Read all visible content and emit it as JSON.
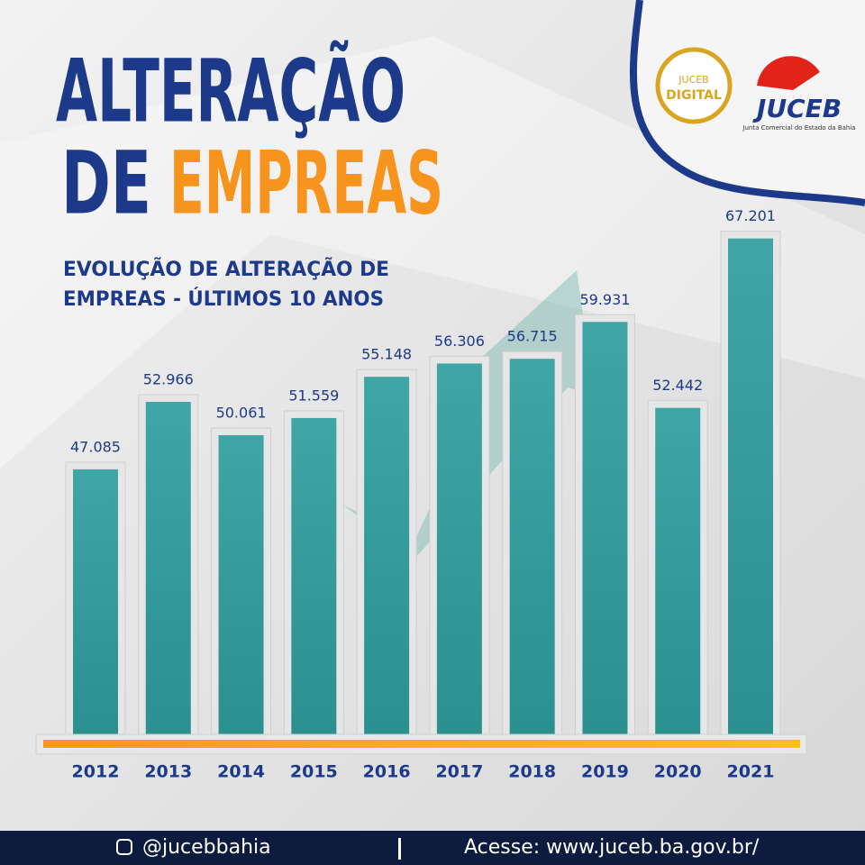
{
  "chart_data": {
    "type": "bar",
    "title_parts": [
      "ALTERAÇÃO",
      "DE",
      "EMPREAS"
    ],
    "subtitle_lines": [
      "EVOLUÇÃO DE ALTERAÇÃO DE",
      "EMPREAS - ÚLTIMOS 10 ANOS"
    ],
    "categories": [
      "2012",
      "2013",
      "2014",
      "2015",
      "2016",
      "2017",
      "2018",
      "2019",
      "2020",
      "2021"
    ],
    "values": [
      47085,
      52966,
      50061,
      51559,
      55148,
      56306,
      56715,
      59931,
      52442,
      67201
    ],
    "value_labels": [
      "47.085",
      "52.966",
      "50.061",
      "51.559",
      "55.148",
      "56.306",
      "56.715",
      "59.931",
      "52.442",
      "67.201"
    ],
    "color": "#3a9e9f",
    "ylim": [
      24000,
      70000
    ]
  },
  "logos": {
    "digital_top": "JUCEB",
    "digital_bottom": "DIGITAL",
    "juceb": "JUCEB",
    "juceb_caption": "Junta Comercial do Estado da Bahia"
  },
  "footer": {
    "instagram": "@jucebbahia",
    "site": "Acesse: www.juceb.ba.gov.br/"
  }
}
